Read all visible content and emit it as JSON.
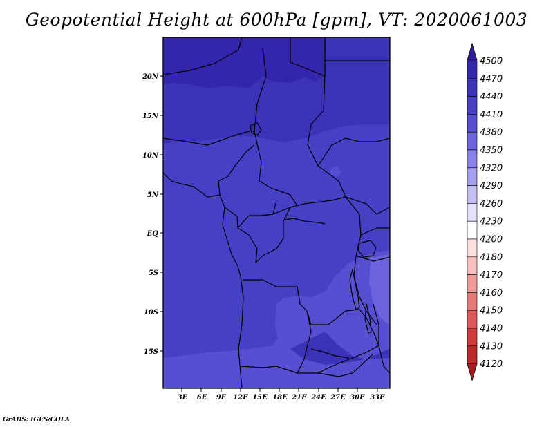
{
  "title": "Geopotential Height at 600hPa [gpm], VT: 2020061003",
  "credit": "GrADS: IGES/COLA",
  "map": {
    "lat_ticks": [
      "20N",
      "15N",
      "10N",
      "5N",
      "EQ",
      "5S",
      "10S",
      "15S"
    ],
    "lon_ticks": [
      "3E",
      "6E",
      "9E",
      "12E",
      "15E",
      "18E",
      "21E",
      "24E",
      "27E",
      "30E",
      "33E"
    ]
  },
  "colorbar": {
    "levels": [
      "4500",
      "4470",
      "4440",
      "4410",
      "4380",
      "4350",
      "4320",
      "4290",
      "4260",
      "4230",
      "4200",
      "4180",
      "4170",
      "4160",
      "4150",
      "4140",
      "4130",
      "4120"
    ],
    "colors": [
      "#2d1a9c",
      "#3326ad",
      "#3a33b8",
      "#4640c6",
      "#564fd2",
      "#6b63de",
      "#8a82ea",
      "#a59ff0",
      "#c4c0f6",
      "#e3e1fb",
      "#ffffff",
      "#fde0e0",
      "#f8c1c1",
      "#f29b9b",
      "#ea7a7a",
      "#e05757",
      "#d33a3a",
      "#c12828",
      "#a81d1d"
    ],
    "top_arrow_color": "#2d1a9c",
    "bottom_arrow_color": "#a81d1d"
  },
  "field_colors": {
    "c4470": "#3326ad",
    "c4440": "#3a33b8",
    "c4410": "#4640c6",
    "c4380": "#564fd2",
    "c4350": "#6b63de"
  }
}
